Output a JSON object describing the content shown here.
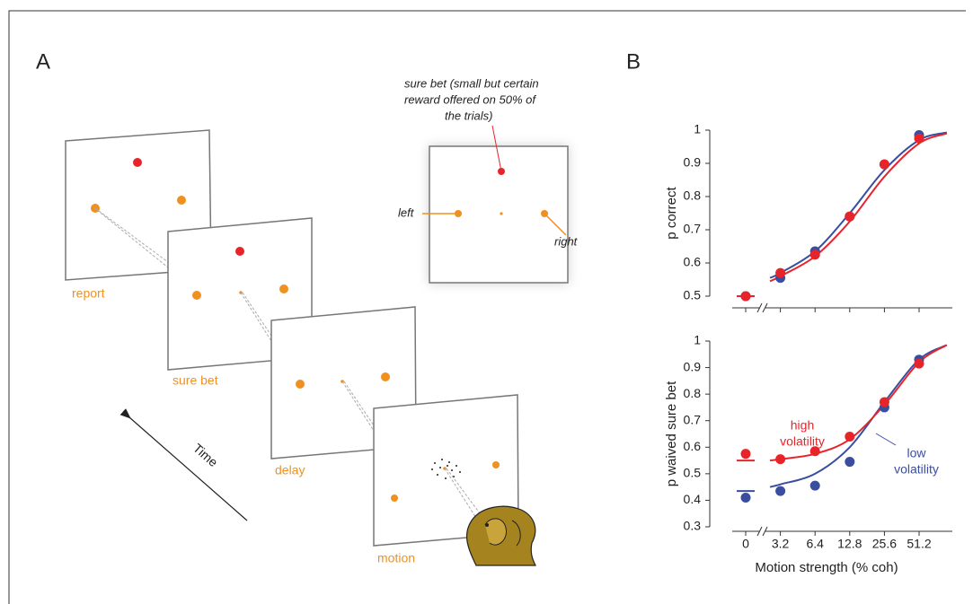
{
  "panels": {
    "a": "A",
    "b": "B"
  },
  "panel_a": {
    "screens": [
      "report",
      "sure bet",
      "delay",
      "motion"
    ],
    "inset_note": [
      "sure bet (small but certain",
      "reward offered on 50% of",
      "the trials)"
    ],
    "left": "left",
    "right": "right",
    "time": "Time"
  },
  "chart_data": [
    {
      "type": "scatter",
      "ylabel": "p correct",
      "categories": [
        "0",
        "3.2",
        "6.4",
        "12.8",
        "25.6",
        "51.2"
      ],
      "ylim": [
        0.5,
        1
      ],
      "yticks": [
        0.5,
        0.6,
        0.7,
        0.8,
        0.9,
        1
      ],
      "fit_x": [
        0.7,
        1,
        2,
        3,
        4,
        5,
        5.8
      ],
      "series": [
        {
          "color": "#3a4ea0",
          "values": [
            0.5,
            0.555,
            0.635,
            0.74,
            0.897,
            0.985
          ],
          "fit": [
            0.555,
            0.57,
            0.635,
            0.75,
            0.88,
            0.97,
            0.993
          ]
        },
        {
          "color": "#e8242b",
          "values": [
            0.5,
            0.57,
            0.625,
            0.74,
            0.897,
            0.975
          ],
          "fit": [
            0.545,
            0.56,
            0.62,
            0.725,
            0.86,
            0.96,
            0.99
          ]
        }
      ]
    },
    {
      "type": "scatter",
      "ylabel": "p waived sure bet",
      "xlabel": "Motion strength (% coh)",
      "categories": [
        "0",
        "3.2",
        "6.4",
        "12.8",
        "25.6",
        "51.2"
      ],
      "ylim": [
        0.3,
        1
      ],
      "yticks": [
        0.3,
        0.4,
        0.5,
        0.6,
        0.7,
        0.8,
        0.9,
        1
      ],
      "fit_x": [
        0.7,
        1,
        2,
        3,
        4,
        5,
        5.8
      ],
      "series": [
        {
          "name": "low volatility",
          "name_lines": [
            "low",
            "volatility"
          ],
          "color": "#3a4ea0",
          "values": [
            0.41,
            0.435,
            0.455,
            0.545,
            0.75,
            0.93
          ],
          "fit": [
            0.45,
            0.46,
            0.5,
            0.6,
            0.77,
            0.93,
            0.985
          ],
          "fit_at_zero": 0.435
        },
        {
          "name": "high volatility",
          "name_lines": [
            "high",
            "volatility"
          ],
          "color": "#e8242b",
          "values": [
            0.575,
            0.555,
            0.585,
            0.64,
            0.77,
            0.915
          ],
          "fit": [
            0.55,
            0.555,
            0.575,
            0.63,
            0.76,
            0.92,
            0.985
          ],
          "fit_at_zero": 0.55
        }
      ]
    }
  ]
}
